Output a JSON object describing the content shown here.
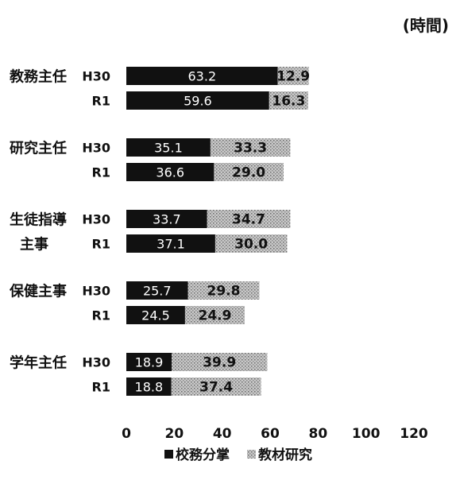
{
  "chart_data": {
    "type": "bar",
    "orientation": "horizontal",
    "stacked": true,
    "unit_label": "(時間)",
    "groups": [
      "教務主任",
      "研究主任",
      "生徒指導主事",
      "保健主事",
      "学年主任"
    ],
    "group_display": [
      [
        "教務主任"
      ],
      [
        "研究主任"
      ],
      [
        "生徒指導",
        "主事"
      ],
      [
        "保健主事"
      ],
      [
        "学年主任"
      ]
    ],
    "years": [
      "H30",
      "R1"
    ],
    "series": [
      {
        "name": "校務分掌",
        "color": "#111111",
        "values": [
          [
            63.2,
            59.6
          ],
          [
            35.1,
            36.6
          ],
          [
            33.7,
            37.1
          ],
          [
            25.7,
            24.5
          ],
          [
            18.9,
            18.8
          ]
        ],
        "labels": [
          [
            "63.2",
            "59.6"
          ],
          [
            "35.1",
            "36.6"
          ],
          [
            "33.7",
            "37.1"
          ],
          [
            "25.7",
            "24.5"
          ],
          [
            "18.9",
            "18.8"
          ]
        ]
      },
      {
        "name": "教材研究",
        "color": "#bdbdbd",
        "pattern": "dotted-gray",
        "values": [
          [
            12.9,
            16.3
          ],
          [
            33.3,
            29.0
          ],
          [
            34.7,
            30.0
          ],
          [
            29.8,
            24.9
          ],
          [
            39.9,
            37.4
          ]
        ],
        "labels": [
          [
            "12.9",
            "16.3"
          ],
          [
            "33.3",
            "29.0"
          ],
          [
            "34.7",
            "30.0"
          ],
          [
            "29.8",
            "24.9"
          ],
          [
            "39.9",
            "37.4"
          ]
        ]
      }
    ],
    "xlim": [
      0,
      120
    ],
    "xticks": [
      "0",
      "20",
      "40",
      "60",
      "80",
      "100",
      "120"
    ],
    "grid": false,
    "legend_position": "bottom"
  }
}
